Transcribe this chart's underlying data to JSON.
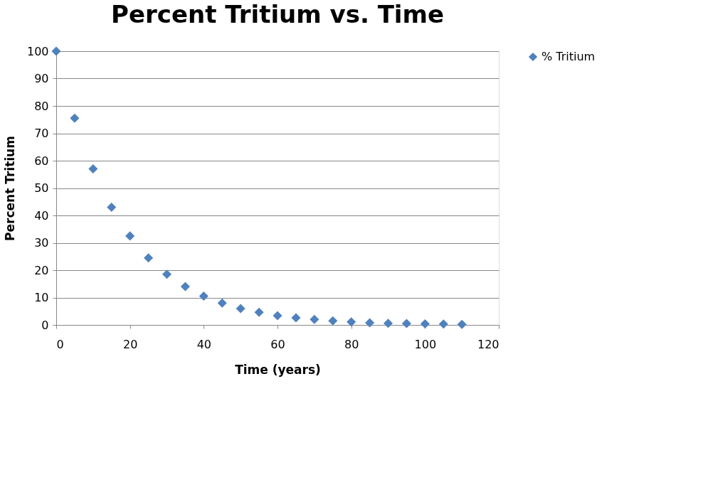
{
  "chart_data": {
    "type": "scatter",
    "title": "Percent Tritium vs. Time",
    "xlabel": "Time (years)",
    "ylabel": "Percent Tritium",
    "x": [
      0,
      5,
      10,
      15,
      20,
      25,
      30,
      35,
      40,
      45,
      50,
      55,
      60,
      65,
      70,
      75,
      80,
      85,
      90,
      95,
      100,
      105,
      110
    ],
    "series": [
      {
        "name": "% Tritium",
        "color": "#4f81bd",
        "values": [
          100,
          75.5,
          57,
          43,
          32.5,
          24.5,
          18.5,
          14,
          10.5,
          8,
          6,
          4.6,
          3.4,
          2.6,
          2,
          1.5,
          1.1,
          0.8,
          0.6,
          0.5,
          0.4,
          0.3,
          0.2
        ]
      }
    ],
    "xlim": [
      0,
      120
    ],
    "xticks": [
      0,
      20,
      40,
      60,
      80,
      100,
      120
    ],
    "ylim": [
      0,
      100
    ],
    "yticks": [
      0,
      10,
      20,
      30,
      40,
      50,
      60,
      70,
      80,
      90,
      100
    ],
    "grid": "y",
    "legend": "right",
    "marker": "diamond"
  }
}
